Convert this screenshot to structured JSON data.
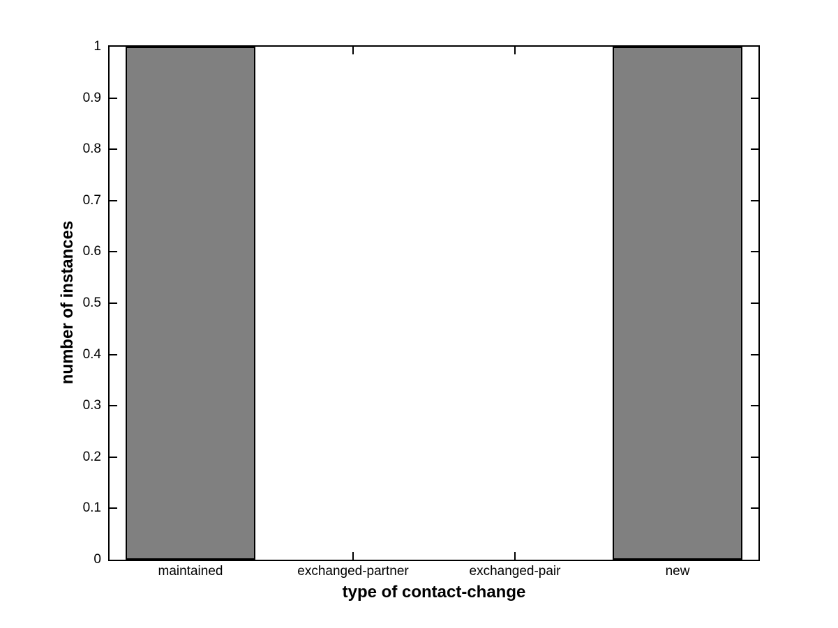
{
  "chart_data": {
    "type": "bar",
    "categories": [
      "maintained",
      "exchanged-partner",
      "exchanged-pair",
      "new"
    ],
    "values": [
      1,
      0,
      0,
      1
    ],
    "title": "",
    "xlabel": "type of contact-change",
    "ylabel": "number of instances",
    "ylim": [
      0,
      1
    ],
    "yticks": [
      0,
      0.1,
      0.2,
      0.3,
      0.4,
      0.5,
      0.6,
      0.7,
      0.8,
      0.9,
      1
    ],
    "ytick_labels": [
      "0",
      "0.1",
      "0.2",
      "0.3",
      "0.4",
      "0.5",
      "0.6",
      "0.7",
      "0.8",
      "0.9",
      "1"
    ],
    "bar_width_fraction": 0.8,
    "grid": "off",
    "legend": "none",
    "bar_color": "#808080",
    "bar_edge_color": "#000000",
    "axis_color": "#000000",
    "background_color": "#ffffff",
    "tick_direction": "in"
  }
}
